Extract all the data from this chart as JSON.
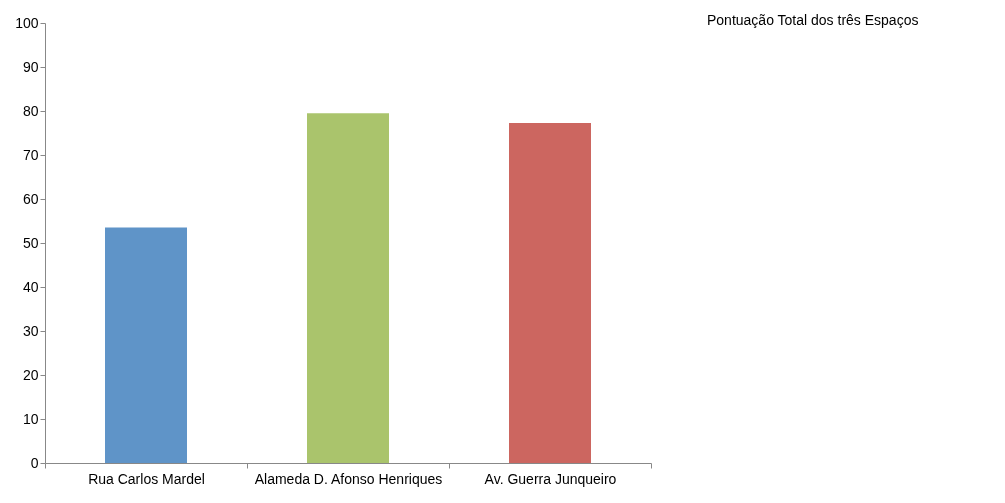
{
  "chart_data": {
    "type": "bar",
    "title": "Pontuação Total dos três Espaços",
    "categories": [
      "Rua Carlos Mardel",
      "Alameda D. Afonso Henriques",
      "Av. Guerra Junqueiro"
    ],
    "values": [
      53.5,
      79.5,
      77.3
    ],
    "colors": [
      "#5f94c8",
      "#aac46c",
      "#cc6660"
    ],
    "ylim": [
      0,
      100
    ],
    "yticks": [
      0,
      10,
      20,
      30,
      40,
      50,
      60,
      70,
      80,
      90,
      100
    ],
    "grid": false
  }
}
